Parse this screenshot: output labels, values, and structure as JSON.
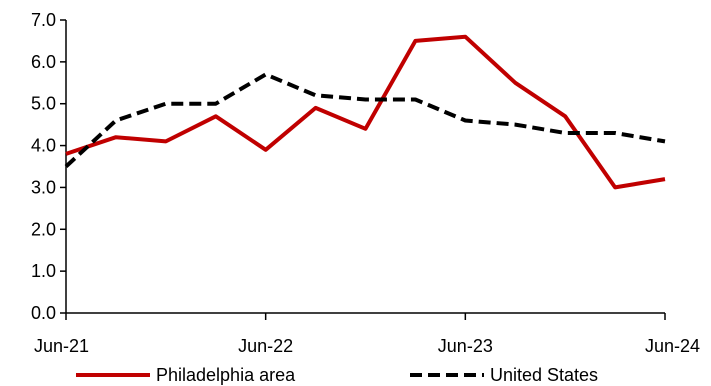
{
  "chart_data": {
    "type": "line",
    "title": "",
    "xlabel": "",
    "ylabel": "",
    "x": [
      "Jun-21",
      "Sep-21",
      "Dec-21",
      "Mar-22",
      "Jun-22",
      "Sep-22",
      "Dec-22",
      "Mar-23",
      "Jun-23",
      "Sep-23",
      "Dec-23",
      "Mar-24",
      "Jun-24"
    ],
    "x_tick_labels": [
      "Jun-21",
      "Jun-22",
      "Jun-23",
      "Jun-24"
    ],
    "y_tick_labels": [
      "0.0",
      "1.0",
      "2.0",
      "3.0",
      "4.0",
      "5.0",
      "6.0",
      "7.0"
    ],
    "ylim": [
      0,
      7
    ],
    "grid": false,
    "legend_position": "bottom",
    "series": [
      {
        "name": "Philadelphia area",
        "color": "#c00000",
        "style": "solid",
        "values": [
          3.8,
          4.2,
          4.1,
          4.7,
          3.9,
          4.9,
          4.4,
          6.5,
          6.6,
          5.5,
          4.7,
          3.0,
          3.2
        ]
      },
      {
        "name": "United States",
        "color": "#000000",
        "style": "dashed",
        "values": [
          3.5,
          4.6,
          5.0,
          5.0,
          5.7,
          5.2,
          5.1,
          5.1,
          4.6,
          4.5,
          4.3,
          4.3,
          4.1
        ]
      }
    ]
  }
}
